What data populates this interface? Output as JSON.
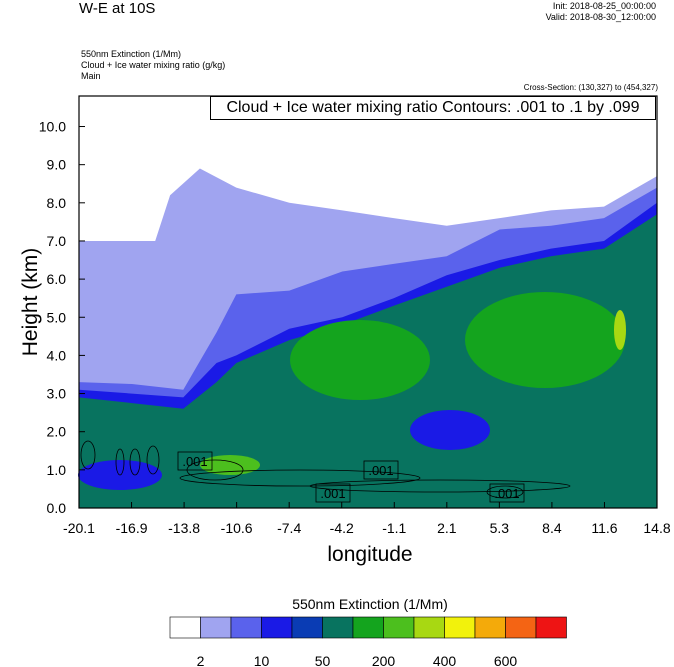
{
  "header": {
    "title": "W-E at 10S",
    "init": "Init: 2018-08-25_00:00:00",
    "valid": "Valid: 2018-08-30_12:00:00"
  },
  "subtitles": {
    "field1": "550nm Extinction   (1/Mm)",
    "field2": "Cloud + Ice water mixing ratio   (g/kg)",
    "field3": "Main"
  },
  "cross_section": "Cross-Section: (130,327) to (454,327)",
  "contour_info": "Cloud + Ice water mixing ratio Contours: .001 to .1 by .099",
  "colorbar": {
    "title": "550nm Extinction  (1/Mm)",
    "colors": [
      "#ffffff",
      "#a0a4f0",
      "#5a62ec",
      "#1a1ae6",
      "#0a3cb4",
      "#08735f",
      "#14a41e",
      "#4cbf1e",
      "#a8d812",
      "#f2f20c",
      "#f4aa0a",
      "#f46414",
      "#ee1414"
    ],
    "labels": [
      "2",
      "10",
      "50",
      "200",
      "400",
      "600"
    ]
  },
  "chart_data": {
    "type": "heatmap",
    "title": "W-E at 10S",
    "xlabel": "longitude",
    "ylabel": "Height (km)",
    "xlim": [
      -20.1,
      14.8
    ],
    "ylim": [
      0.0,
      10.8
    ],
    "x_ticks": [
      "-20.1",
      "-16.9",
      "-13.8",
      "-10.6",
      "-7.4",
      "-4.2",
      "-1.1",
      "2.1",
      "5.3",
      "8.4",
      "11.6",
      "14.8"
    ],
    "y_ticks": [
      "0.0",
      "1.0",
      "2.0",
      "3.0",
      "4.0",
      "5.0",
      "6.0",
      "7.0",
      "8.0",
      "9.0",
      "10.0"
    ],
    "layers": [
      {
        "level": "2",
        "color": "#a0a4f0",
        "top_km": [
          [
            -20.1,
            7.0
          ],
          [
            -15.5,
            7.0
          ],
          [
            -14.6,
            8.2
          ],
          [
            -12.8,
            8.9
          ],
          [
            -10.6,
            8.4
          ],
          [
            -7.4,
            8.0
          ],
          [
            -4.2,
            7.8
          ],
          [
            -1.1,
            7.6
          ],
          [
            2.1,
            7.4
          ],
          [
            5.3,
            7.6
          ],
          [
            8.4,
            7.8
          ],
          [
            11.6,
            7.9
          ],
          [
            14.8,
            8.7
          ]
        ]
      },
      {
        "level": "10",
        "color": "#5a62ec",
        "top_km": [
          [
            -20.1,
            3.3
          ],
          [
            -16.9,
            3.25
          ],
          [
            -13.8,
            3.1
          ],
          [
            -11.8,
            4.6
          ],
          [
            -10.6,
            5.6
          ],
          [
            -7.4,
            5.7
          ],
          [
            -4.2,
            6.2
          ],
          [
            -1.1,
            6.4
          ],
          [
            2.1,
            6.6
          ],
          [
            5.3,
            7.3
          ],
          [
            8.4,
            7.4
          ],
          [
            11.6,
            7.6
          ],
          [
            14.8,
            8.4
          ]
        ]
      },
      {
        "level": "50",
        "color": "#1a1ae6",
        "top_km": [
          [
            -20.1,
            3.1
          ],
          [
            -16.9,
            3.0
          ],
          [
            -13.8,
            2.9
          ],
          [
            -11.8,
            3.8
          ],
          [
            -10.6,
            4.0
          ],
          [
            -7.4,
            4.7
          ],
          [
            -4.2,
            5.0
          ],
          [
            -1.1,
            5.5
          ],
          [
            2.1,
            6.1
          ],
          [
            5.3,
            6.5
          ],
          [
            8.4,
            6.8
          ],
          [
            11.6,
            7.0
          ],
          [
            14.8,
            8.0
          ]
        ]
      },
      {
        "level": "200",
        "color": "#08735f",
        "top_km": [
          [
            -20.1,
            2.9
          ],
          [
            -16.9,
            2.75
          ],
          [
            -13.8,
            2.6
          ],
          [
            -11.8,
            3.3
          ],
          [
            -10.6,
            3.8
          ],
          [
            -7.4,
            4.4
          ],
          [
            -4.2,
            4.8
          ],
          [
            -1.1,
            5.3
          ],
          [
            2.1,
            5.8
          ],
          [
            5.3,
            6.3
          ],
          [
            8.4,
            6.6
          ],
          [
            11.6,
            6.8
          ],
          [
            14.8,
            7.7
          ]
        ]
      }
    ],
    "contour_level_labels": [
      ".001",
      ".001",
      ".001",
      ".001"
    ]
  }
}
